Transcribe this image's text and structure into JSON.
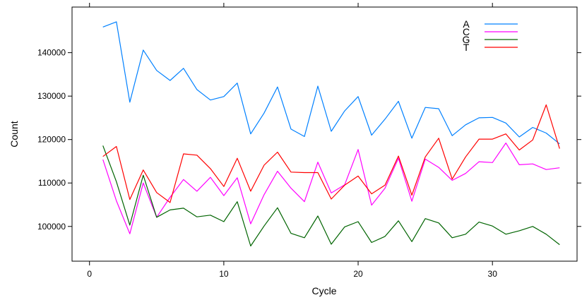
{
  "chart_data": {
    "type": "line",
    "xlabel": "Cycle",
    "ylabel": "Count",
    "xlim": [
      -1.3,
      36.3
    ],
    "ylim": [
      92000,
      150500
    ],
    "x_ticks": [
      0,
      10,
      20,
      30
    ],
    "y_ticks": [
      100000,
      110000,
      120000,
      130000,
      140000
    ],
    "grid": false,
    "legend_position": "top-right",
    "x": [
      1,
      2,
      3,
      4,
      5,
      6,
      7,
      8,
      9,
      10,
      11,
      12,
      13,
      14,
      15,
      16,
      17,
      18,
      19,
      20,
      21,
      22,
      23,
      24,
      25,
      26,
      27,
      28,
      29,
      30,
      31,
      32,
      33,
      34,
      35
    ],
    "series": [
      {
        "name": "A",
        "color": "#0080ff",
        "values": [
          145900,
          147100,
          128600,
          140600,
          135900,
          133600,
          136400,
          131500,
          129100,
          129900,
          133000,
          121300,
          126100,
          132100,
          122400,
          120700,
          132300,
          121900,
          126600,
          129900,
          121000,
          124700,
          128800,
          120300,
          127400,
          127100,
          120900,
          123400,
          125000,
          125100,
          123800,
          120600,
          122800,
          121500,
          119000
        ]
      },
      {
        "name": "C",
        "color": "#ff00ff",
        "values": [
          115400,
          105900,
          98300,
          110000,
          102100,
          106700,
          110800,
          108100,
          111300,
          107100,
          111200,
          100600,
          107300,
          112700,
          108800,
          105700,
          114800,
          107700,
          109600,
          117700,
          104900,
          108800,
          115700,
          105800,
          115500,
          113600,
          110600,
          112200,
          114900,
          114700,
          119200,
          114200,
          114400,
          113100,
          113500
        ]
      },
      {
        "name": "G",
        "color": "#006400",
        "values": [
          118600,
          110300,
          100300,
          111800,
          102100,
          103800,
          104200,
          102200,
          102600,
          101100,
          105700,
          95500,
          100100,
          104300,
          98400,
          97400,
          102400,
          95900,
          99900,
          101100,
          96300,
          97700,
          101300,
          96500,
          101800,
          100800,
          97400,
          98200,
          101000,
          100100,
          98200,
          99000,
          100000,
          98200,
          95800
        ]
      },
      {
        "name": "T",
        "color": "#ff0000",
        "values": [
          116100,
          118400,
          106200,
          113000,
          107800,
          105500,
          116700,
          116400,
          113300,
          109200,
          115700,
          108100,
          114100,
          117100,
          112500,
          112400,
          112400,
          106300,
          109500,
          111600,
          107500,
          109500,
          116200,
          107200,
          116000,
          120300,
          110900,
          116000,
          120100,
          120100,
          121300,
          117600,
          119900,
          128000,
          117900
        ]
      }
    ]
  }
}
